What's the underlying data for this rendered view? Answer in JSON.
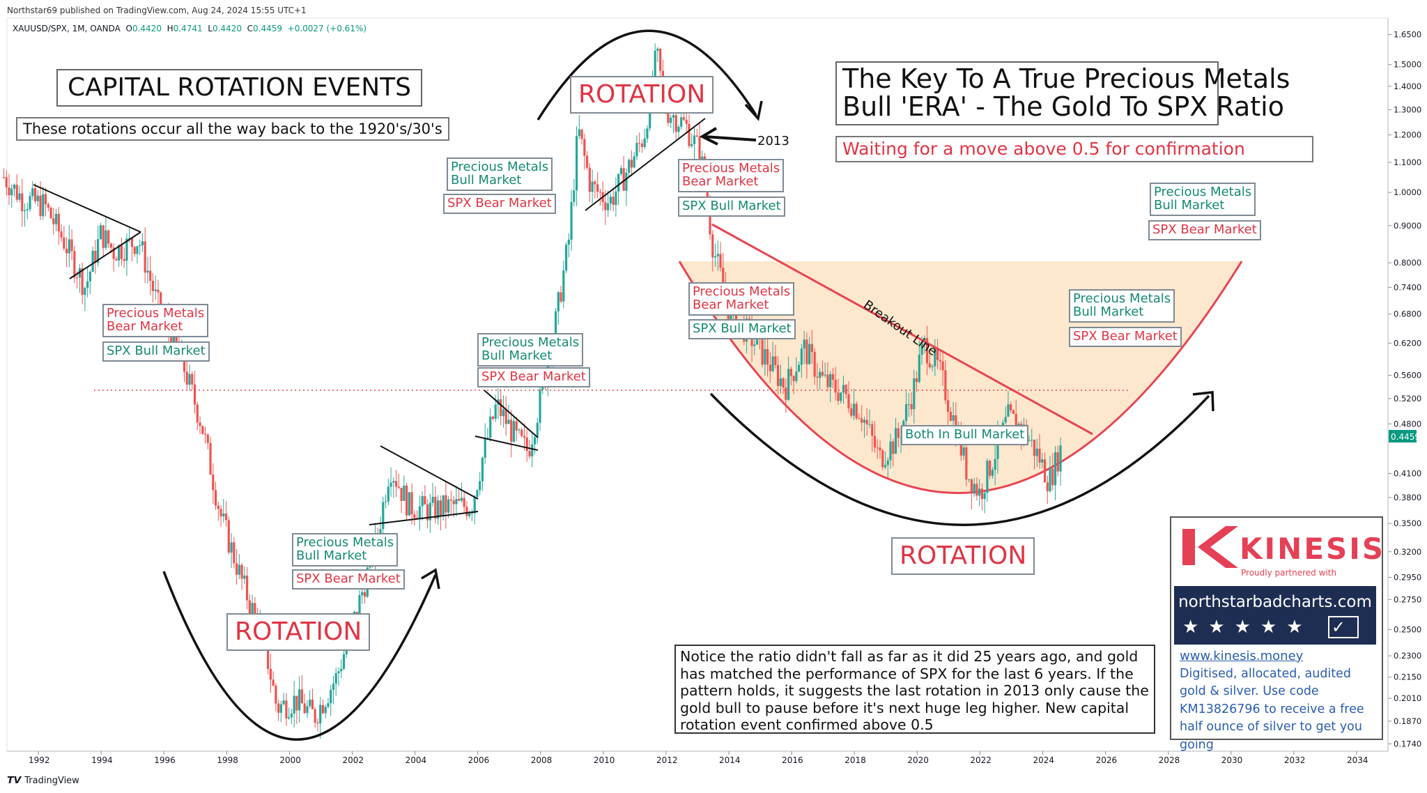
{
  "header": {
    "published": "Northstar69 published on TradingView.com, Aug 24, 2024 15:55 UTC+1",
    "symbol": "XAUUSD/SPX, 1M, OANDA",
    "o_label": "O",
    "open": "0.4420",
    "h_label": "H",
    "high": "0.4741",
    "l_label": "L",
    "low": "0.4420",
    "c_label": "C",
    "close": "0.4459",
    "change": "+0.0027 (+0.61%)"
  },
  "footer": {
    "brand": "TradingView",
    "logo_mark": "𝙏𝙑"
  },
  "colors": {
    "up": "#26a69a",
    "down": "#ef5350",
    "red_text": "#e03444",
    "green_text": "#138a72",
    "cup_fill": "#fde4c8",
    "cup_stroke": "#e84452",
    "price_tag": "#089981"
  },
  "chart_data": {
    "type": "candlestick",
    "title": "The Key To A True Precious Metals Bull 'ERA' - The Gold To SPX Ratio",
    "scale": "log",
    "ylim": [
      0.17,
      1.7
    ],
    "xlim": [
      1990.9,
      2035.0
    ],
    "y_ticks": [
      "1.6500",
      "1.5000",
      "1.4000",
      "1.3000",
      "1.2000",
      "1.1000",
      "1.0000",
      "0.9000",
      "0.8000",
      "0.7400",
      "0.6800",
      "0.6200",
      "0.5600",
      "0.5200",
      "0.4800",
      "0.4100",
      "0.3800",
      "0.3500",
      "0.3200",
      "0.2950",
      "0.2750",
      "0.2500",
      "0.2300",
      "0.2150",
      "0.2010",
      "0.1870",
      "0.1740"
    ],
    "x_ticks": [
      "1992",
      "1994",
      "1996",
      "1998",
      "2000",
      "2002",
      "2004",
      "2006",
      "2008",
      "2010",
      "2012",
      "2014",
      "2016",
      "2018",
      "2020",
      "2022",
      "2024",
      "2026",
      "2028",
      "2030",
      "2032",
      "2034"
    ],
    "last_price": "0.4459",
    "reference_level": {
      "value": 0.5,
      "label": "0.5"
    },
    "price_path": [
      [
        1990.9,
        1.05
      ],
      [
        1991.5,
        0.98
      ],
      [
        1992.2,
        0.96
      ],
      [
        1992.8,
        0.86
      ],
      [
        1993.5,
        0.74
      ],
      [
        1994.0,
        0.88
      ],
      [
        1994.4,
        0.83
      ],
      [
        1995.2,
        0.86
      ],
      [
        1995.8,
        0.7
      ],
      [
        1996.5,
        0.6
      ],
      [
        1997.2,
        0.48
      ],
      [
        1997.8,
        0.36
      ],
      [
        1998.5,
        0.29
      ],
      [
        1999.2,
        0.24
      ],
      [
        1999.6,
        0.195
      ],
      [
        2000.2,
        0.2
      ],
      [
        2000.8,
        0.19
      ],
      [
        2001.5,
        0.215
      ],
      [
        2002.2,
        0.27
      ],
      [
        2002.8,
        0.335
      ],
      [
        2003.2,
        0.42
      ],
      [
        2003.8,
        0.37
      ],
      [
        2004.5,
        0.365
      ],
      [
        2005.2,
        0.37
      ],
      [
        2005.8,
        0.37
      ],
      [
        2006.2,
        0.44
      ],
      [
        2006.6,
        0.51
      ],
      [
        2007.2,
        0.46
      ],
      [
        2007.6,
        0.44
      ],
      [
        2008.0,
        0.52
      ],
      [
        2008.4,
        0.63
      ],
      [
        2008.9,
        0.86
      ],
      [
        2009.2,
        1.22
      ],
      [
        2009.6,
        1.02
      ],
      [
        2010.2,
        0.97
      ],
      [
        2010.8,
        1.08
      ],
      [
        2011.3,
        1.2
      ],
      [
        2011.7,
        1.55
      ],
      [
        2012.0,
        1.3
      ],
      [
        2012.6,
        1.24
      ],
      [
        2013.1,
        1.13
      ],
      [
        2013.5,
        0.84
      ],
      [
        2014.0,
        0.69
      ],
      [
        2014.6,
        0.64
      ],
      [
        2015.2,
        0.59
      ],
      [
        2015.8,
        0.54
      ],
      [
        2016.4,
        0.61
      ],
      [
        2017.0,
        0.55
      ],
      [
        2017.6,
        0.53
      ],
      [
        2018.2,
        0.5
      ],
      [
        2018.8,
        0.43
      ],
      [
        2019.4,
        0.46
      ],
      [
        2019.9,
        0.54
      ],
      [
        2020.2,
        0.62
      ],
      [
        2020.7,
        0.57
      ],
      [
        2021.2,
        0.48
      ],
      [
        2021.6,
        0.41
      ],
      [
        2022.0,
        0.385
      ],
      [
        2022.5,
        0.44
      ],
      [
        2022.9,
        0.49
      ],
      [
        2023.4,
        0.47
      ],
      [
        2023.9,
        0.43
      ],
      [
        2024.2,
        0.4
      ],
      [
        2024.6,
        0.446
      ]
    ]
  },
  "labels": {
    "capital_title": "CAPITAL ROTATION EVENTS",
    "capital_sub": "These rotations occur all the way back to the 1920's/30's",
    "key_title_1": "The Key To A True Precious Metals",
    "key_title_2": "Bull 'ERA' - The Gold To SPX Ratio",
    "waiting": "Waiting for a move above 0.5 for confirmation",
    "rotation": "ROTATION",
    "pm_bull_1": "Precious Metals",
    "pm_bull_2": "Bull Market",
    "pm_bear_1": "Precious Metals",
    "pm_bear_2": "Bear Market",
    "spx_bull": "SPX Bull Market",
    "spx_bear": "SPX Bear Market",
    "both_bull": "Both In Bull Market",
    "breakout": "Breakout Line",
    "year_2013": "2013",
    "note": "Notice the ratio didn't fall as far as it did 25 years ago, and gold has matched the performance of SPX for the last 6 years. If the pattern holds, it suggests the last rotation in 2013 only cause the gold bull to pause before it's next huge leg higher. New capital rotation event confirmed above 0.5"
  },
  "sponsor": {
    "brand": "KINESIS",
    "tagline": "Proudly partnered with",
    "site": "northstarbadcharts.com",
    "stars": "★★★★★",
    "url": "www.kinesis.money",
    "desc": "Digitised, allocated, audited gold & silver. Use code KM13826796 to receive a free half ounce of silver to get you going"
  }
}
